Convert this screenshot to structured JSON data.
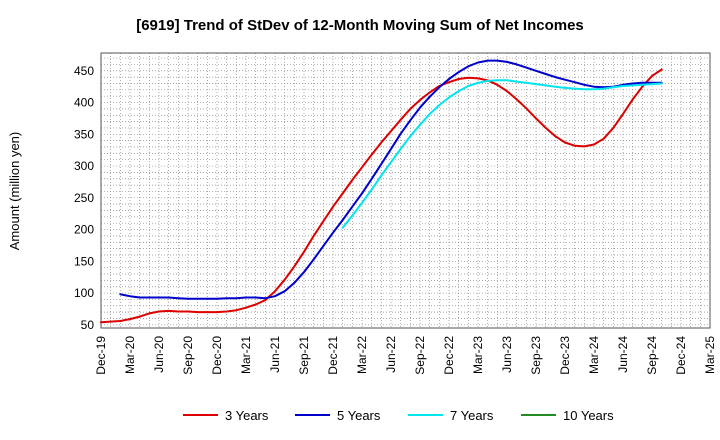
{
  "chart_data": {
    "type": "line",
    "title": "[6919]  Trend of StDev of 12-Month Moving Sum of Net Incomes",
    "xlabel": "",
    "ylabel": "Amount (million yen)",
    "ylim": [
      45,
      478
    ],
    "yticks": [
      50,
      100,
      150,
      200,
      250,
      300,
      350,
      400,
      450
    ],
    "x_tick_labels": [
      "Dec-19",
      "Mar-20",
      "Jun-20",
      "Sep-20",
      "Dec-20",
      "Mar-21",
      "Jun-21",
      "Sep-21",
      "Dec-21",
      "Mar-22",
      "Jun-22",
      "Sep-22",
      "Dec-22",
      "Mar-23",
      "Jun-23",
      "Sep-23",
      "Dec-23",
      "Mar-24",
      "Jun-24",
      "Sep-24",
      "Dec-24",
      "Mar-25"
    ],
    "grid": true,
    "legend_position": "bottom",
    "series": [
      {
        "name": "3 Years",
        "color": "#dd0000",
        "points": [
          [
            0,
            54
          ],
          [
            1,
            55
          ],
          [
            2,
            56
          ],
          [
            3,
            59
          ],
          [
            4,
            63
          ],
          [
            5,
            68
          ],
          [
            6,
            71
          ],
          [
            7,
            72
          ],
          [
            8,
            71
          ],
          [
            9,
            71
          ],
          [
            10,
            70
          ],
          [
            11,
            70
          ],
          [
            12,
            70
          ],
          [
            13,
            71
          ],
          [
            14,
            73
          ],
          [
            15,
            77
          ],
          [
            16,
            82
          ],
          [
            17,
            89
          ],
          [
            18,
            103
          ],
          [
            19,
            121
          ],
          [
            20,
            142
          ],
          [
            21,
            165
          ],
          [
            22,
            190
          ],
          [
            23,
            213
          ],
          [
            24,
            236
          ],
          [
            25,
            257
          ],
          [
            26,
            278
          ],
          [
            27,
            298
          ],
          [
            28,
            318
          ],
          [
            29,
            337
          ],
          [
            30,
            355
          ],
          [
            31,
            373
          ],
          [
            32,
            390
          ],
          [
            33,
            404
          ],
          [
            34,
            416
          ],
          [
            35,
            426
          ],
          [
            36,
            432
          ],
          [
            37,
            437
          ],
          [
            38,
            439
          ],
          [
            39,
            438
          ],
          [
            40,
            435
          ],
          [
            41,
            428
          ],
          [
            42,
            418
          ],
          [
            43,
            405
          ],
          [
            44,
            391
          ],
          [
            45,
            375
          ],
          [
            46,
            360
          ],
          [
            47,
            347
          ],
          [
            48,
            337
          ],
          [
            49,
            332
          ],
          [
            50,
            331
          ],
          [
            51,
            334
          ],
          [
            52,
            343
          ],
          [
            53,
            360
          ],
          [
            54,
            382
          ],
          [
            55,
            405
          ],
          [
            56,
            425
          ],
          [
            57,
            442
          ],
          [
            58,
            452
          ]
        ]
      },
      {
        "name": "5 Years",
        "color": "#0000cc",
        "points": [
          [
            2,
            98
          ],
          [
            3,
            95
          ],
          [
            4,
            93
          ],
          [
            5,
            93
          ],
          [
            6,
            93
          ],
          [
            7,
            93
          ],
          [
            8,
            92
          ],
          [
            9,
            91
          ],
          [
            10,
            91
          ],
          [
            11,
            91
          ],
          [
            12,
            91
          ],
          [
            13,
            92
          ],
          [
            14,
            92
          ],
          [
            15,
            93
          ],
          [
            16,
            93
          ],
          [
            17,
            92
          ],
          [
            18,
            95
          ],
          [
            19,
            103
          ],
          [
            20,
            116
          ],
          [
            21,
            133
          ],
          [
            22,
            153
          ],
          [
            23,
            174
          ],
          [
            24,
            195
          ],
          [
            25,
            215
          ],
          [
            26,
            236
          ],
          [
            27,
            257
          ],
          [
            28,
            280
          ],
          [
            29,
            303
          ],
          [
            30,
            327
          ],
          [
            31,
            351
          ],
          [
            32,
            372
          ],
          [
            33,
            392
          ],
          [
            34,
            409
          ],
          [
            35,
            424
          ],
          [
            36,
            437
          ],
          [
            37,
            448
          ],
          [
            38,
            457
          ],
          [
            39,
            463
          ],
          [
            40,
            466
          ],
          [
            41,
            466
          ],
          [
            42,
            464
          ],
          [
            43,
            460
          ],
          [
            44,
            455
          ],
          [
            45,
            450
          ],
          [
            46,
            445
          ],
          [
            47,
            440
          ],
          [
            48,
            436
          ],
          [
            49,
            432
          ],
          [
            50,
            428
          ],
          [
            51,
            425
          ],
          [
            52,
            424
          ],
          [
            53,
            425
          ],
          [
            54,
            428
          ],
          [
            55,
            430
          ],
          [
            56,
            431
          ],
          [
            57,
            431
          ],
          [
            58,
            431
          ]
        ]
      },
      {
        "name": "7 Years",
        "color": "#00e5ee",
        "points": [
          [
            25,
            203
          ],
          [
            26,
            222
          ],
          [
            27,
            242
          ],
          [
            28,
            263
          ],
          [
            29,
            285
          ],
          [
            30,
            306
          ],
          [
            31,
            327
          ],
          [
            32,
            347
          ],
          [
            33,
            365
          ],
          [
            34,
            382
          ],
          [
            35,
            396
          ],
          [
            36,
            408
          ],
          [
            37,
            418
          ],
          [
            38,
            426
          ],
          [
            39,
            431
          ],
          [
            40,
            434
          ],
          [
            41,
            435
          ],
          [
            42,
            435
          ],
          [
            43,
            433
          ],
          [
            44,
            431
          ],
          [
            45,
            429
          ],
          [
            46,
            427
          ],
          [
            47,
            425
          ],
          [
            48,
            423
          ],
          [
            49,
            422
          ],
          [
            50,
            421
          ],
          [
            51,
            421
          ],
          [
            52,
            422
          ],
          [
            53,
            424
          ],
          [
            54,
            426
          ],
          [
            55,
            427
          ],
          [
            56,
            428
          ],
          [
            57,
            429
          ],
          [
            58,
            430
          ]
        ]
      },
      {
        "name": "10 Years",
        "color": "#228b22",
        "points": []
      }
    ]
  }
}
